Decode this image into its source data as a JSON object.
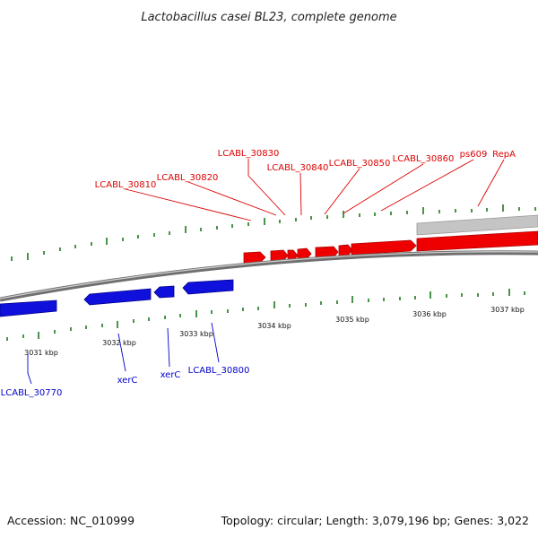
{
  "title": "Lactobacillus casei BL23, complete genome",
  "footer": {
    "accession": "Accession: NC_010999",
    "summary": "Topology: circular; Length: 3,079,196 bp; Genes: 3,022"
  },
  "colors": {
    "forward_gene": "#ee0000",
    "reverse_gene": "#1010dd",
    "pseudo_gene": "#bdbdbd",
    "backbone": "#777777",
    "tick": "#1a7a1a",
    "forward_label": "#dd0000",
    "reverse_label": "#0000cc"
  },
  "scale": {
    "tick_labels": [
      "3031 kbp",
      "3032 kbp",
      "3033 kbp",
      "3034 kbp",
      "3035 kbp",
      "3036 kbp",
      "3037 kbp"
    ]
  },
  "forward_genes": [
    "LCABL_30810",
    "LCABL_30820",
    "LCABL_30830",
    "LCABL_30840",
    "LCABL_30850",
    "LCABL_30860",
    "ps609",
    "RepA"
  ],
  "reverse_genes": [
    "LCABL_30770",
    "xerC",
    "xerC",
    "LCABL_30800"
  ]
}
